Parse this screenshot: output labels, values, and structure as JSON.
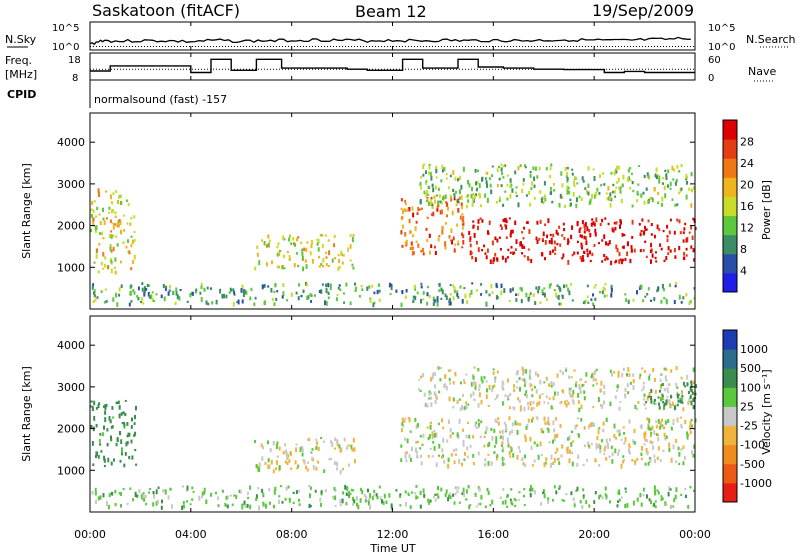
{
  "header": {
    "title": "Saskatoon (fitACF)",
    "beam": "Beam 12",
    "date": "19/Sep/2009",
    "nsky_label": "N.Sky",
    "nsearch_label": "N.Search",
    "freq_label": "Freq.",
    "freq_unit": "[MHz]",
    "nave_label": "Nave",
    "cpid_label": "CPID",
    "cpid_text": "normalsound (fast) -157",
    "noise_ticks": [
      "10^5",
      "10^0"
    ],
    "freq_ticks": [
      "18",
      "8"
    ],
    "nave_ticks": [
      "60",
      "0"
    ]
  },
  "axes": {
    "x_ticks": [
      "00:00",
      "04:00",
      "08:00",
      "12:00",
      "16:00",
      "20:00",
      "00:00"
    ],
    "x_label": "Time UT",
    "y_label": "Slant Range [km]",
    "y_ticks": [
      "1000",
      "2000",
      "3000",
      "4000"
    ]
  },
  "colorbars": {
    "power_label": "Power [dB]",
    "power_ticks": [
      "4",
      "8",
      "12",
      "16",
      "20",
      "24",
      "28"
    ],
    "power_colors": [
      "#1e1ee6",
      "#2a4faa",
      "#3c8c64",
      "#5cc83c",
      "#c8dc28",
      "#f0b41e",
      "#f07814",
      "#e63c14",
      "#dc0000"
    ],
    "velocity_label": "Velocity [m s⁻¹]",
    "velocity_ticks": [
      "1000",
      "500",
      "100",
      "25",
      "-25",
      "-100",
      "-500",
      "-1000"
    ],
    "velocity_colors": [
      "#1e3cb4",
      "#2a6e8c",
      "#3c8c50",
      "#5ac83c",
      "#c8c8c8",
      "#f0b43c",
      "#f08c1e",
      "#eb5a14",
      "#e61e14"
    ]
  },
  "chart_data": [
    {
      "type": "line",
      "title": "Saskatoon (fitACF)",
      "name_panel": "noise",
      "x_range_hours": [
        0,
        24
      ],
      "ylim_log10": [
        0,
        5
      ],
      "series": [
        {
          "name": "N.Sky",
          "x": [
            0,
            0.5,
            1.0,
            2.0,
            3.0,
            4.0,
            5.0,
            6.0,
            7.0,
            8.0,
            9.0,
            10.0,
            11.0,
            12.0,
            13.0,
            14.0,
            15.0,
            16.0,
            17.0,
            18.0,
            19.0,
            20.0,
            21.0,
            22.0,
            23.0,
            24.0
          ],
          "y": [
            0.8,
            1.6,
            1.4,
            1.5,
            1.5,
            1.3,
            1.6,
            1.4,
            1.5,
            1.6,
            1.7,
            1.6,
            1.5,
            1.6,
            1.5,
            1.6,
            1.5,
            1.6,
            1.5,
            1.6,
            1.7,
            1.6,
            1.5,
            1.7,
            1.8,
            2.1
          ]
        },
        {
          "name": "N.Search",
          "x": [
            0,
            24
          ],
          "y": [
            0.3,
            0.3
          ]
        }
      ]
    },
    {
      "type": "line",
      "name_panel": "frequency",
      "x_range_hours": [
        0,
        24
      ],
      "ylim": [
        8,
        18
      ],
      "series": [
        {
          "name": "Freq.",
          "x": [
            0,
            0.8,
            0.8,
            4.0,
            4.0,
            4.8,
            4.8,
            5.6,
            5.6,
            6.6,
            6.6,
            7.6,
            7.6,
            10.2,
            10.2,
            11.0,
            11.0,
            12.4,
            12.4,
            13.2,
            13.2,
            14.6,
            14.6,
            15.4,
            15.4,
            16.4,
            16.4,
            17.6,
            17.6,
            18.8,
            18.8,
            20.4,
            20.4,
            21.2,
            21.2,
            22.0,
            22.0,
            24.0
          ],
          "y": [
            11.2,
            11.2,
            13.5,
            13.5,
            10.5,
            10.5,
            16.5,
            16.5,
            11.5,
            11.5,
            16.5,
            16.5,
            12.5,
            12.5,
            12.0,
            12.0,
            11.5,
            11.5,
            16.5,
            16.5,
            12.5,
            12.5,
            16.5,
            16.5,
            13.0,
            13.0,
            12.5,
            12.5,
            12.0,
            12.0,
            11.8,
            11.8,
            10.5,
            10.5,
            11.0,
            11.0,
            10.5,
            10.5
          ]
        },
        {
          "name": "Nave",
          "x": [
            0,
            24
          ],
          "y": [
            12.0,
            12.0
          ]
        }
      ]
    },
    {
      "type": "heatmap",
      "name_panel": "power",
      "xlabel": "Time UT",
      "ylabel": "Slant Range [km]",
      "x_range_hours": [
        0,
        24
      ],
      "ylim": [
        0,
        4700
      ],
      "colorbar": "Power [dB]",
      "regions": [
        {
          "t": [
            0.0,
            1.8
          ],
          "range": [
            900,
            2900
          ],
          "value_db": 14
        },
        {
          "t": [
            6.5,
            10.5
          ],
          "range": [
            1000,
            1800
          ],
          "value_db": 14
        },
        {
          "t": [
            12.3,
            14.8
          ],
          "range": [
            1300,
            2700
          ],
          "value_db": 20
        },
        {
          "t": [
            15.0,
            24.0
          ],
          "range": [
            1150,
            2200
          ],
          "value_db": 26
        },
        {
          "t": [
            13.0,
            24.0
          ],
          "range": [
            2500,
            3500
          ],
          "value_db": 10
        },
        {
          "t": [
            0.0,
            24.0
          ],
          "range": [
            150,
            650
          ],
          "value_db": 8
        }
      ]
    },
    {
      "type": "heatmap",
      "name_panel": "velocity",
      "xlabel": "Time UT",
      "ylabel": "Slant Range [km]",
      "x_range_hours": [
        0,
        24
      ],
      "ylim": [
        0,
        4700
      ],
      "colorbar": "Velocity [m s⁻¹]",
      "regions": [
        {
          "t": [
            0.0,
            1.8
          ],
          "range": [
            1100,
            2700
          ],
          "value_ms": 150
        },
        {
          "t": [
            6.5,
            10.5
          ],
          "range": [
            1000,
            1800
          ],
          "value_ms": -10
        },
        {
          "t": [
            12.3,
            24.0
          ],
          "range": [
            1150,
            2300
          ],
          "value_ms": 0
        },
        {
          "t": [
            13.0,
            24.0
          ],
          "range": [
            2500,
            3500
          ],
          "value_ms": 0
        },
        {
          "t": [
            22.0,
            24.0
          ],
          "range": [
            2500,
            3200
          ],
          "value_ms": 200
        },
        {
          "t": [
            0.0,
            24.0
          ],
          "range": [
            150,
            650
          ],
          "value_ms": 60
        }
      ]
    }
  ]
}
